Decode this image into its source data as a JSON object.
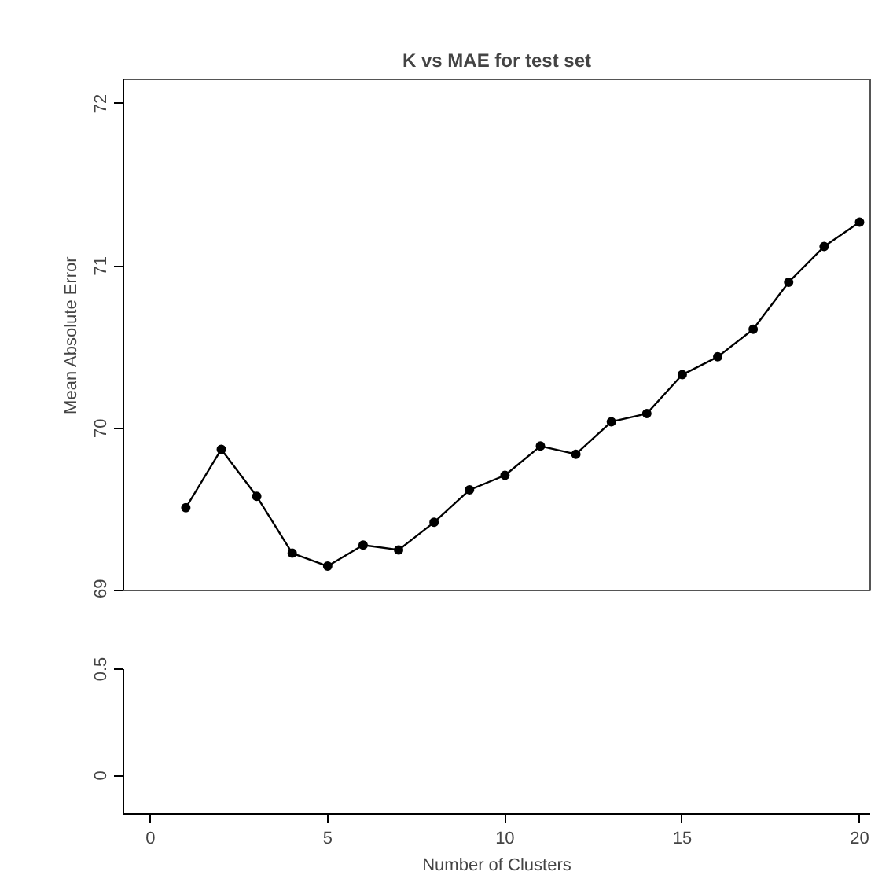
{
  "chart_data": [
    {
      "type": "line",
      "title": "K vs MAE for test set",
      "ylabel": "Mean Absolute Error",
      "x": [
        1,
        2,
        3,
        4,
        5,
        6,
        7,
        8,
        9,
        10,
        11,
        12,
        13,
        14,
        15,
        16,
        17,
        18,
        19,
        20
      ],
      "series": [
        {
          "color": "#000000",
          "values": [
            69.51,
            69.87,
            69.58,
            69.23,
            69.15,
            69.28,
            69.25,
            69.42,
            69.62,
            69.71,
            69.89,
            69.84,
            70.04,
            70.09,
            70.33,
            70.44,
            70.61,
            70.9,
            71.12,
            71.27
          ]
        }
      ],
      "marker": "circle",
      "line_style": "solid",
      "xlim": [
        -0.76,
        20.3
      ],
      "ylim": [
        69,
        72.15
      ],
      "yticks": [
        69,
        70,
        71,
        72
      ],
      "tick_labels": "y"
    },
    {
      "type": "line",
      "xlabel": "Number of Clusters",
      "xlim": [
        -0.76,
        20.3
      ],
      "xticks": [
        0,
        5,
        10,
        15,
        20
      ],
      "ylim": [
        -0.18,
        0.5
      ],
      "yticks": [
        0,
        0.5
      ]
    }
  ]
}
